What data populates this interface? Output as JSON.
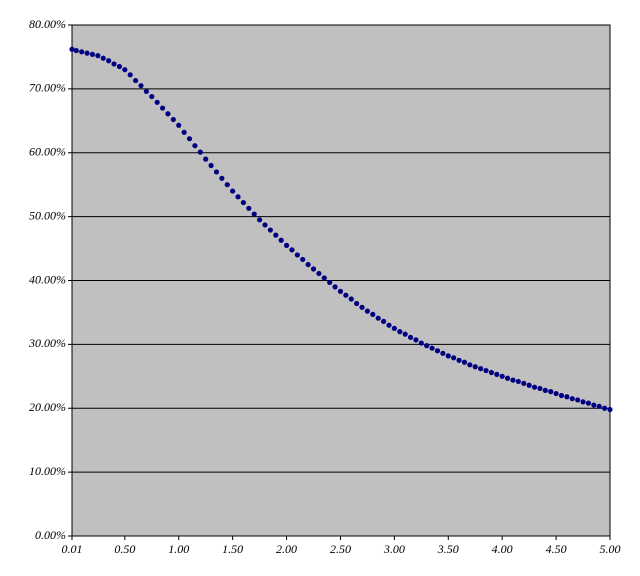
{
  "chart_data": {
    "type": "scatter",
    "x": [
      0.01,
      0.05,
      0.1,
      0.15,
      0.2,
      0.25,
      0.3,
      0.35,
      0.4,
      0.45,
      0.5,
      0.55,
      0.6,
      0.65,
      0.7,
      0.75,
      0.8,
      0.85,
      0.9,
      0.95,
      1.0,
      1.05,
      1.1,
      1.15,
      1.2,
      1.25,
      1.3,
      1.35,
      1.4,
      1.45,
      1.5,
      1.55,
      1.6,
      1.65,
      1.7,
      1.75,
      1.8,
      1.85,
      1.9,
      1.95,
      2.0,
      2.05,
      2.1,
      2.15,
      2.2,
      2.25,
      2.3,
      2.35,
      2.4,
      2.45,
      2.5,
      2.55,
      2.6,
      2.65,
      2.7,
      2.75,
      2.8,
      2.85,
      2.9,
      2.95,
      3.0,
      3.05,
      3.1,
      3.15,
      3.2,
      3.25,
      3.3,
      3.35,
      3.4,
      3.45,
      3.5,
      3.55,
      3.6,
      3.65,
      3.7,
      3.75,
      3.8,
      3.85,
      3.9,
      3.95,
      4.0,
      4.05,
      4.1,
      4.15,
      4.2,
      4.25,
      4.3,
      4.35,
      4.4,
      4.45,
      4.5,
      4.55,
      4.6,
      4.65,
      4.7,
      4.75,
      4.8,
      4.85,
      4.9,
      4.95,
      5.0
    ],
    "series": [
      {
        "color": "#000080",
        "values": [
          76.2,
          76.0,
          75.8,
          75.6,
          75.4,
          75.2,
          74.8,
          74.4,
          73.9,
          73.5,
          73.0,
          72.2,
          71.3,
          70.5,
          69.6,
          68.8,
          67.9,
          67.0,
          66.1,
          65.2,
          64.3,
          63.2,
          62.2,
          61.1,
          60.1,
          59.0,
          58.0,
          57.0,
          56.0,
          55.0,
          54.0,
          53.1,
          52.2,
          51.3,
          50.4,
          49.5,
          48.7,
          47.9,
          47.1,
          46.3,
          45.5,
          44.8,
          44.0,
          43.3,
          42.5,
          41.8,
          41.1,
          40.4,
          39.7,
          39.0,
          38.3,
          37.7,
          37.1,
          36.4,
          35.8,
          35.2,
          34.7,
          34.1,
          33.6,
          33.0,
          32.5,
          32.0,
          31.6,
          31.1,
          30.7,
          30.2,
          29.8,
          29.4,
          29.0,
          28.6,
          28.2,
          27.9,
          27.5,
          27.2,
          26.8,
          26.5,
          26.2,
          25.9,
          25.6,
          25.3,
          25.0,
          24.7,
          24.4,
          24.2,
          23.9,
          23.6,
          23.3,
          23.1,
          22.8,
          22.6,
          22.3,
          22.0,
          21.8,
          21.5,
          21.3,
          21.0,
          20.8,
          20.5,
          20.3,
          20.0,
          19.8
        ]
      }
    ],
    "xlim": [
      0.01,
      5.0
    ],
    "xticks": [
      0.01,
      {
        "value": 0.5,
        "label": "0.50"
      },
      {
        "value": 1,
        "label": "1.00"
      },
      {
        "value": 1.5,
        "label": "1.50"
      },
      {
        "value": 2,
        "label": "2.00"
      },
      {
        "value": 2.5,
        "label": "2.50"
      },
      {
        "value": 3,
        "label": "3.00"
      },
      {
        "value": 3.5,
        "label": "3.50"
      },
      {
        "value": 4,
        "label": "4.00"
      },
      {
        "value": 4.5,
        "label": "4.50"
      },
      {
        "value": 5,
        "label": "5.00"
      }
    ],
    "ylim": [
      0,
      80
    ],
    "yticks": [
      {
        "value": 0,
        "label": "0.00%"
      },
      {
        "value": 10,
        "label": "10.00%"
      },
      {
        "value": 20,
        "label": "20.00%"
      },
      {
        "value": 30,
        "label": "30.00%"
      },
      {
        "value": 40,
        "label": "40.00%"
      },
      {
        "value": 50,
        "label": "50.00%"
      },
      {
        "value": 60,
        "label": "60.00%"
      },
      {
        "value": 70,
        "label": "70.00%"
      },
      {
        "value": 80,
        "label": "80.00%"
      }
    ],
    "grid": true,
    "plot_background": "#c0c0c0"
  }
}
